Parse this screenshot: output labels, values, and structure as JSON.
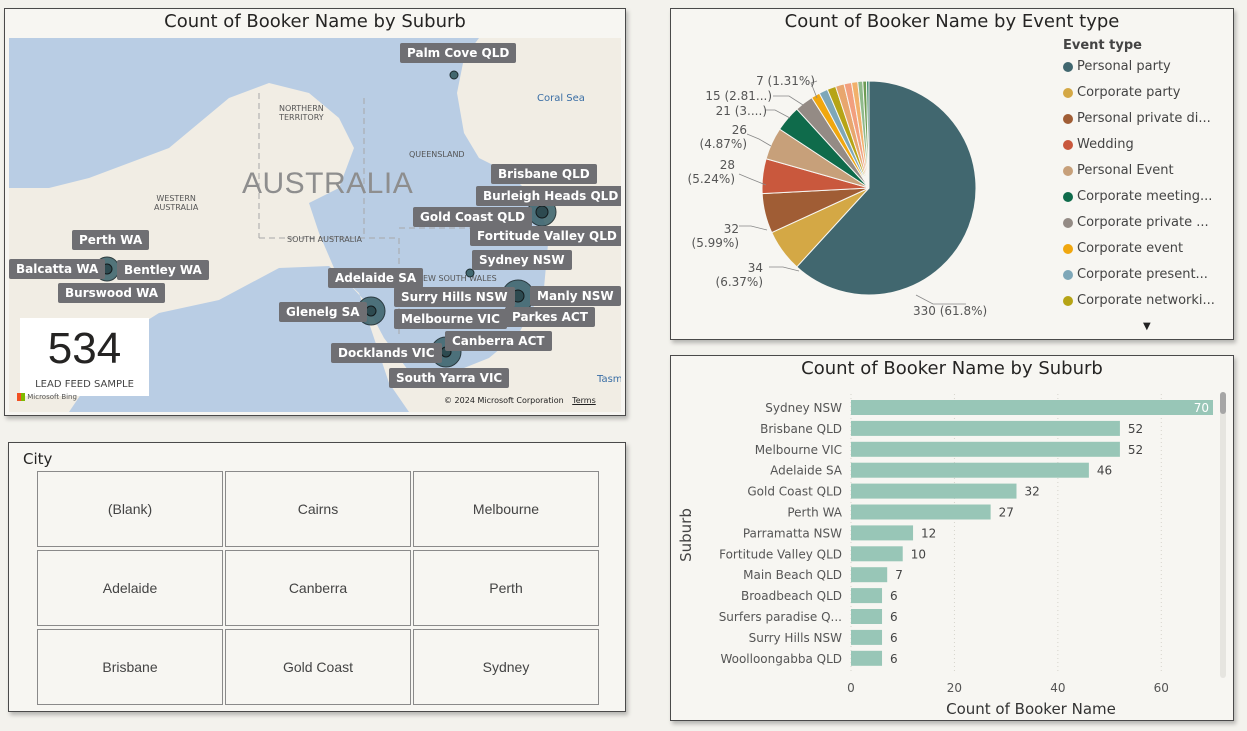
{
  "map": {
    "title": "Count of Booker Name by Suburb",
    "country_label": "AUSTRALIA",
    "region_labels": [
      "NORTHERN\nTERRITORY",
      "QUEENSLAND",
      "WESTERN\nAUSTRALIA",
      "SOUTH AUSTRALIA",
      "NEW SOUTH WALES"
    ],
    "sea_labels": [
      "Coral Sea",
      "Tasm"
    ],
    "locations": [
      "Palm Cove QLD",
      "Brisbane QLD",
      "Burleigh Heads QLD",
      "Gold Coast QLD",
      "Fortitude Valley QLD",
      "Perth WA",
      "Balcatta WA",
      "Bentley WA",
      "Burswood WA",
      "Sydney NSW",
      "Adelaide SA",
      "Surry Hills NSW",
      "Manly NSW",
      "Glenelg SA",
      "Melbourne VIC",
      "Parkes ACT",
      "Canberra ACT",
      "Docklands VIC",
      "South Yarra VIC"
    ],
    "kpi": {
      "value": "534",
      "label": "LEAD FEED SAMPLE"
    },
    "attribution": "Microsoft Bing",
    "copyright": "© 2024 Microsoft Corporation",
    "terms": "Terms"
  },
  "slicer": {
    "header": "City",
    "items": [
      "(Blank)",
      "Cairns",
      "Melbourne",
      "Adelaide",
      "Canberra",
      "Perth",
      "Brisbane",
      "Gold Coast",
      "Sydney"
    ]
  },
  "pie_chart": {
    "title": "Count of Booker Name by Event type",
    "legend_title": "Event type",
    "legend_items": [
      {
        "label": "Personal party",
        "color": "#41676f"
      },
      {
        "label": "Corporate party",
        "color": "#d4a845"
      },
      {
        "label": "Personal private di...",
        "color": "#a05d35"
      },
      {
        "label": "Wedding",
        "color": "#c9583d"
      },
      {
        "label": "Personal Event",
        "color": "#c7a07a"
      },
      {
        "label": "Corporate meeting...",
        "color": "#0f6b4b"
      },
      {
        "label": "Corporate private ...",
        "color": "#948b85"
      },
      {
        "label": "Corporate event",
        "color": "#f0a70f"
      },
      {
        "label": "Corporate present...",
        "color": "#7ea7b8"
      },
      {
        "label": "Corporate networki...",
        "color": "#b6a416"
      }
    ],
    "data_labels": [
      "330 (61.8%)",
      "34",
      "(6.37%)",
      "32",
      "(5.99%)",
      "28",
      "(5.24%)",
      "26",
      "(4.87%)",
      "21 (3....)",
      "15 (2.81...)",
      "7 (1.31%)"
    ]
  },
  "bar_chart": {
    "title": "Count of Booker Name by Suburb",
    "xlabel": "Count of Booker Name",
    "ylabel": "Suburb",
    "x_ticks": [
      "0",
      "20",
      "40",
      "60"
    ]
  },
  "chart_data": [
    {
      "type": "pie",
      "title": "Count of Booker Name by Event type",
      "legend_title": "Event type",
      "legend_placement": "right",
      "slices": [
        {
          "label": "Personal party",
          "value": 330,
          "color": "#41676f"
        },
        {
          "label": "Corporate party",
          "value": 34,
          "color": "#d4a845"
        },
        {
          "label": "Personal private di...",
          "value": 32,
          "color": "#a05d35"
        },
        {
          "label": "Wedding",
          "value": 28,
          "color": "#c9583d"
        },
        {
          "label": "Personal Event",
          "value": 26,
          "color": "#c7a07a"
        },
        {
          "label": "Corporate meeting...",
          "value": 21,
          "color": "#0f6b4b"
        },
        {
          "label": "Corporate private ...",
          "value": 15,
          "color": "#948b85"
        },
        {
          "label": "Corporate event",
          "value": 7,
          "color": "#f0a70f"
        },
        {
          "label": "Corporate present...",
          "value": 7,
          "color": "#7ea7b8"
        },
        {
          "label": "Corporate networki...",
          "value": 7,
          "color": "#b6a416"
        },
        {
          "label": "",
          "value": 7,
          "color": "#e8a66e"
        },
        {
          "label": "",
          "value": 6,
          "color": "#f29f7e"
        },
        {
          "label": "",
          "value": 5,
          "color": "#f2b06b"
        },
        {
          "label": "",
          "value": 4,
          "color": "#8fba8b"
        },
        {
          "label": "",
          "value": 3,
          "color": "#6c9c54"
        },
        {
          "label": "",
          "value": 2,
          "color": "#3d8a6f"
        }
      ]
    },
    {
      "type": "bar",
      "orientation": "horizontal",
      "title": "Count of Booker Name by Suburb",
      "xlabel": "Count of Booker Name",
      "ylabel": "Suburb",
      "xlim": [
        0,
        70
      ],
      "bar_color": "#98c6b7",
      "categories": [
        "Sydney NSW",
        "Brisbane QLD",
        "Melbourne VIC",
        "Adelaide SA",
        "Gold Coast QLD",
        "Perth WA",
        "Parramatta NSW",
        "Fortitude Valley QLD",
        "Main Beach QLD",
        "Broadbeach QLD",
        "Surfers paradise Q...",
        "Surry Hills NSW",
        "Woolloongabba QLD"
      ],
      "values": [
        70,
        52,
        52,
        46,
        32,
        27,
        12,
        10,
        7,
        6,
        6,
        6,
        6
      ]
    }
  ]
}
